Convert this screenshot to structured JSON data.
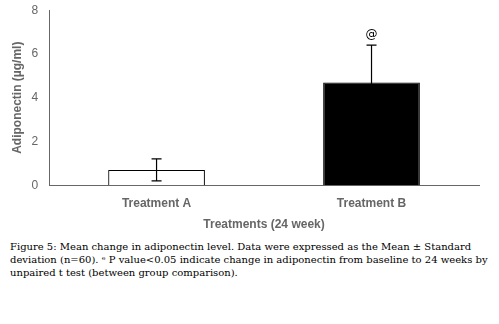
{
  "chart_data": {
    "type": "bar",
    "categories": [
      "Treatment A",
      "Treatment B"
    ],
    "values": [
      0.7,
      4.7
    ],
    "errors": [
      0.5,
      1.7
    ],
    "colors": [
      "#ffffff",
      "#000000"
    ],
    "xlabel": "Treatments (24 week)",
    "ylabel": "Adiponectin (µg/ml)",
    "ylim": [
      0,
      8
    ],
    "yticks": [
      0,
      2,
      4,
      6,
      8
    ],
    "grid": false,
    "annotations": [
      {
        "category": "Treatment B",
        "text": "@"
      }
    ],
    "caption": "Figure 5: Mean change in adiponectin level. Data were expressed as the Mean ± Standard deviation (n=60). ᵉ P value<0.05 indicate change in adiponectin from baseline to 24 weeks by unpaired t test (between group comparison)."
  }
}
